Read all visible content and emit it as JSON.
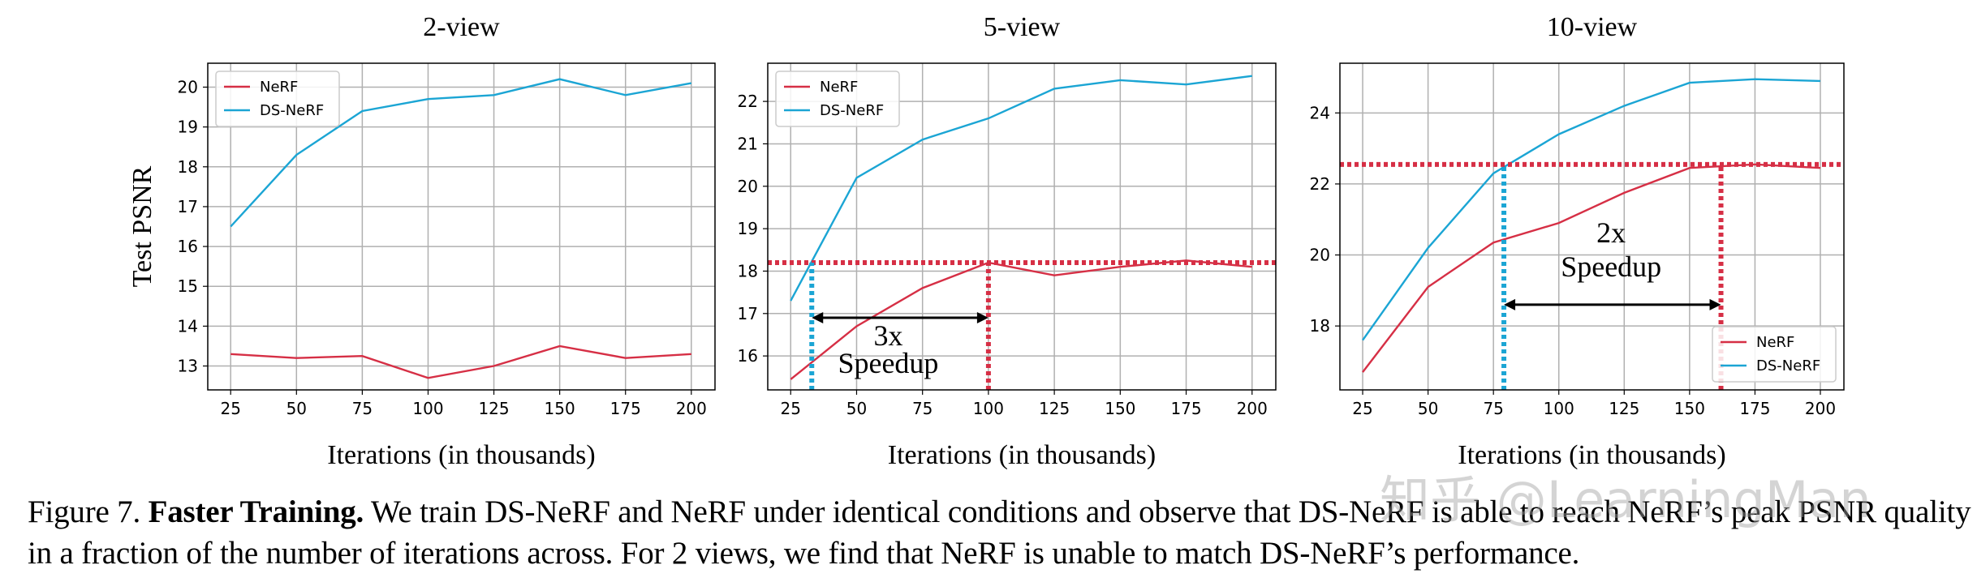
{
  "chart_data": [
    {
      "type": "line",
      "title": "2-view",
      "ylabel": "Test PSNR",
      "xlabel": "Iterations (in thousands)",
      "x": [
        25,
        50,
        75,
        100,
        125,
        150,
        175,
        200
      ],
      "series": [
        {
          "name": "NeRF",
          "color": "#d62f45",
          "values": [
            13.3,
            13.2,
            13.25,
            12.7,
            13.0,
            13.5,
            13.2,
            13.3
          ]
        },
        {
          "name": "DS-NeRF",
          "color": "#1ba5d4",
          "values": [
            16.5,
            18.3,
            19.4,
            19.7,
            19.8,
            20.2,
            19.8,
            20.1
          ]
        }
      ],
      "xlim": [
        16.3,
        209
      ],
      "ylim": [
        12.4,
        20.6
      ],
      "xticks": [
        25,
        50,
        75,
        100,
        125,
        150,
        175,
        200
      ],
      "yticks": [
        13,
        14,
        15,
        16,
        17,
        18,
        19,
        20
      ],
      "grid": true,
      "legend": "upper left"
    },
    {
      "type": "line",
      "title": "5-view",
      "xlabel": "Iterations (in thousands)",
      "x": [
        25,
        50,
        75,
        100,
        125,
        150,
        175,
        200
      ],
      "series": [
        {
          "name": "NeRF",
          "color": "#d62f45",
          "values": [
            15.45,
            16.7,
            17.6,
            18.2,
            17.9,
            18.1,
            18.25,
            18.1
          ]
        },
        {
          "name": "DS-NeRF",
          "color": "#1ba5d4",
          "values": [
            17.3,
            20.2,
            21.1,
            21.6,
            22.3,
            22.5,
            22.4,
            22.6
          ]
        }
      ],
      "xlim": [
        16.3,
        209
      ],
      "ylim": [
        15.2,
        22.9
      ],
      "xticks": [
        25,
        50,
        75,
        100,
        125,
        150,
        175,
        200
      ],
      "yticks": [
        16,
        17,
        18,
        19,
        20,
        21,
        22
      ],
      "grid": true,
      "legend": "upper left",
      "hline": {
        "y": 18.2,
        "color": "#d62f45"
      },
      "vlines": [
        {
          "x": 33,
          "y": 18.2,
          "color": "#1ba5d4"
        },
        {
          "x": 100,
          "y": 18.2,
          "color": "#d62f45"
        }
      ],
      "arrow": {
        "x": [
          33,
          100
        ],
        "y": 16.9
      },
      "annotations": [
        {
          "text": "3x",
          "x": 62,
          "y": 16.25
        },
        {
          "text": "Speedup",
          "x": 62,
          "y": 15.6
        }
      ]
    },
    {
      "type": "line",
      "title": "10-view",
      "xlabel": "Iterations (in thousands)",
      "x": [
        25,
        50,
        75,
        100,
        125,
        150,
        175,
        200
      ],
      "series": [
        {
          "name": "NeRF",
          "color": "#d62f45",
          "values": [
            16.7,
            19.1,
            20.35,
            20.9,
            21.75,
            22.45,
            22.55,
            22.45
          ]
        },
        {
          "name": "DS-NeRF",
          "color": "#1ba5d4",
          "values": [
            17.6,
            20.2,
            22.3,
            23.4,
            24.2,
            24.85,
            24.95,
            24.9
          ]
        }
      ],
      "xlim": [
        16.3,
        209
      ],
      "ylim": [
        16.2,
        25.4
      ],
      "xticks": [
        25,
        50,
        75,
        100,
        125,
        150,
        175,
        200
      ],
      "yticks": [
        18,
        20,
        22,
        24
      ],
      "grid": true,
      "legend": "lower right",
      "hline": {
        "y": 22.55,
        "color": "#d62f45"
      },
      "vlines": [
        {
          "x": 79,
          "y": 22.55,
          "color": "#1ba5d4"
        },
        {
          "x": 162,
          "y": 22.55,
          "color": "#d62f45"
        }
      ],
      "arrow": {
        "x": [
          79,
          162
        ],
        "y": 18.6
      },
      "annotations": [
        {
          "text": "2x",
          "x": 120,
          "y": 20.35
        },
        {
          "text": "Speedup",
          "x": 120,
          "y": 19.4
        }
      ]
    }
  ],
  "caption": {
    "label": "Figure 7.",
    "bold": "Faster Training.",
    "text": "We train DS-NeRF and NeRF under identical conditions and observe that DS-NeRF is able to reach NeRF’s peak PSNR quality in a fraction of the number of iterations across. For 2 views, we find that NeRF is unable to match DS-NeRF’s performance."
  },
  "watermark": "知乎 @LearningMan"
}
